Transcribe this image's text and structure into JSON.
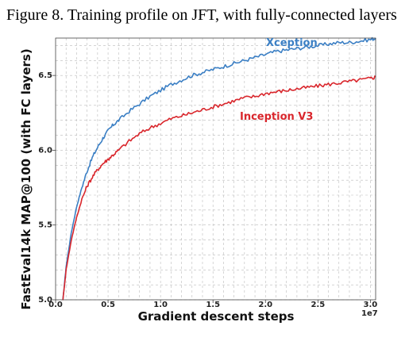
{
  "figure": {
    "caption": "Figure 8. Training profile on JFT, with fully-connected layers"
  },
  "chart_data": {
    "type": "line",
    "title": "",
    "xlabel": "Gradient descent steps",
    "ylabel": "FastEval14k MAP@100 (with FC layers)",
    "x_offset_label": "1e7",
    "xlim": [
      0.0,
      3.05
    ],
    "ylim": [
      5.0,
      6.75
    ],
    "x_ticks": [
      0.0,
      0.5,
      1.0,
      1.5,
      2.0,
      2.5,
      3.0
    ],
    "x_tick_labels": [
      "0.0",
      "0.5",
      "1.0",
      "1.5",
      "2.0",
      "2.5",
      "3.0"
    ],
    "y_ticks": [
      5.0,
      5.5,
      6.0,
      6.5
    ],
    "y_tick_labels": [
      "5.0",
      "5.5",
      "6.0",
      "6.5"
    ],
    "grid": true,
    "legend": "inline labels",
    "series": [
      {
        "name": "Xception",
        "color": "#3b7fc4",
        "x": [
          0.07,
          0.1,
          0.15,
          0.2,
          0.25,
          0.3,
          0.35,
          0.4,
          0.45,
          0.5,
          0.55,
          0.6,
          0.7,
          0.8,
          0.9,
          1.0,
          1.1,
          1.2,
          1.3,
          1.4,
          1.5,
          1.6,
          1.7,
          1.8,
          1.9,
          2.0,
          2.1,
          2.2,
          2.3,
          2.4,
          2.5,
          2.6,
          2.7,
          2.8,
          2.9,
          3.0,
          3.05
        ],
        "y": [
          5.0,
          5.22,
          5.45,
          5.62,
          5.75,
          5.86,
          5.95,
          6.02,
          6.08,
          6.13,
          6.17,
          6.2,
          6.26,
          6.31,
          6.36,
          6.4,
          6.44,
          6.47,
          6.5,
          6.52,
          6.54,
          6.56,
          6.58,
          6.6,
          6.62,
          6.64,
          6.66,
          6.67,
          6.68,
          6.69,
          6.7,
          6.71,
          6.72,
          6.72,
          6.73,
          6.74,
          6.75
        ]
      },
      {
        "name": "Inception V3",
        "color": "#d9262c",
        "x": [
          0.07,
          0.1,
          0.15,
          0.2,
          0.25,
          0.3,
          0.35,
          0.4,
          0.45,
          0.5,
          0.55,
          0.6,
          0.7,
          0.8,
          0.9,
          1.0,
          1.1,
          1.2,
          1.3,
          1.4,
          1.5,
          1.6,
          1.7,
          1.8,
          1.9,
          2.0,
          2.1,
          2.2,
          2.3,
          2.4,
          2.5,
          2.6,
          2.7,
          2.8,
          2.9,
          3.0,
          3.05
        ],
        "y": [
          5.0,
          5.2,
          5.4,
          5.55,
          5.67,
          5.76,
          5.82,
          5.87,
          5.91,
          5.94,
          5.97,
          6.0,
          6.06,
          6.11,
          6.15,
          6.18,
          6.21,
          6.23,
          6.25,
          6.27,
          6.29,
          6.31,
          6.33,
          6.35,
          6.36,
          6.38,
          6.39,
          6.4,
          6.41,
          6.42,
          6.43,
          6.44,
          6.45,
          6.46,
          6.47,
          6.48,
          6.49
        ]
      }
    ]
  }
}
